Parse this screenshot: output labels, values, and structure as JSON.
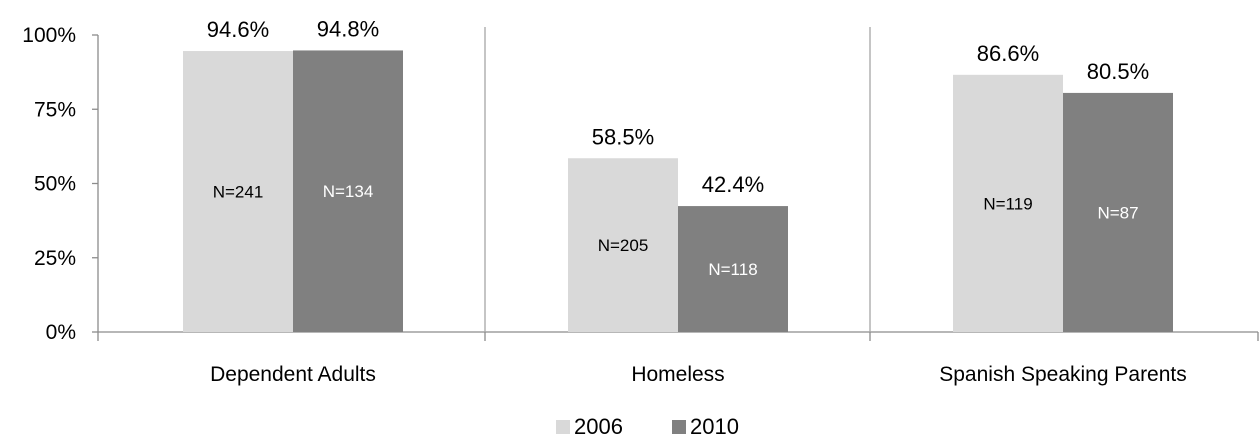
{
  "chart_data": {
    "type": "bar",
    "categories": [
      "Dependent Adults",
      "Homeless",
      "Spanish Speaking Parents"
    ],
    "series": [
      {
        "name": "2006",
        "values": [
          94.6,
          58.5,
          86.6
        ],
        "value_labels": [
          "94.6%",
          "58.5%",
          "86.6%"
        ],
        "n_labels": [
          "N=241",
          "N=205",
          "N=119"
        ],
        "color": "#d9d9d9",
        "n_label_color": "#000000"
      },
      {
        "name": "2010",
        "values": [
          94.8,
          42.4,
          80.5
        ],
        "value_labels": [
          "94.8%",
          "42.4%",
          "80.5%"
        ],
        "n_labels": [
          "N=134",
          "N=118",
          "N=87"
        ],
        "color": "#808080",
        "n_label_color": "#ffffff"
      }
    ],
    "ylim": [
      0,
      100
    ],
    "yticks": [
      0,
      25,
      50,
      75,
      100
    ],
    "ytick_labels": [
      "0%",
      "25%",
      "50%",
      "75%",
      "100%"
    ],
    "title": "",
    "xlabel": "",
    "ylabel": "",
    "grid": false,
    "legend_position": "bottom-center"
  }
}
